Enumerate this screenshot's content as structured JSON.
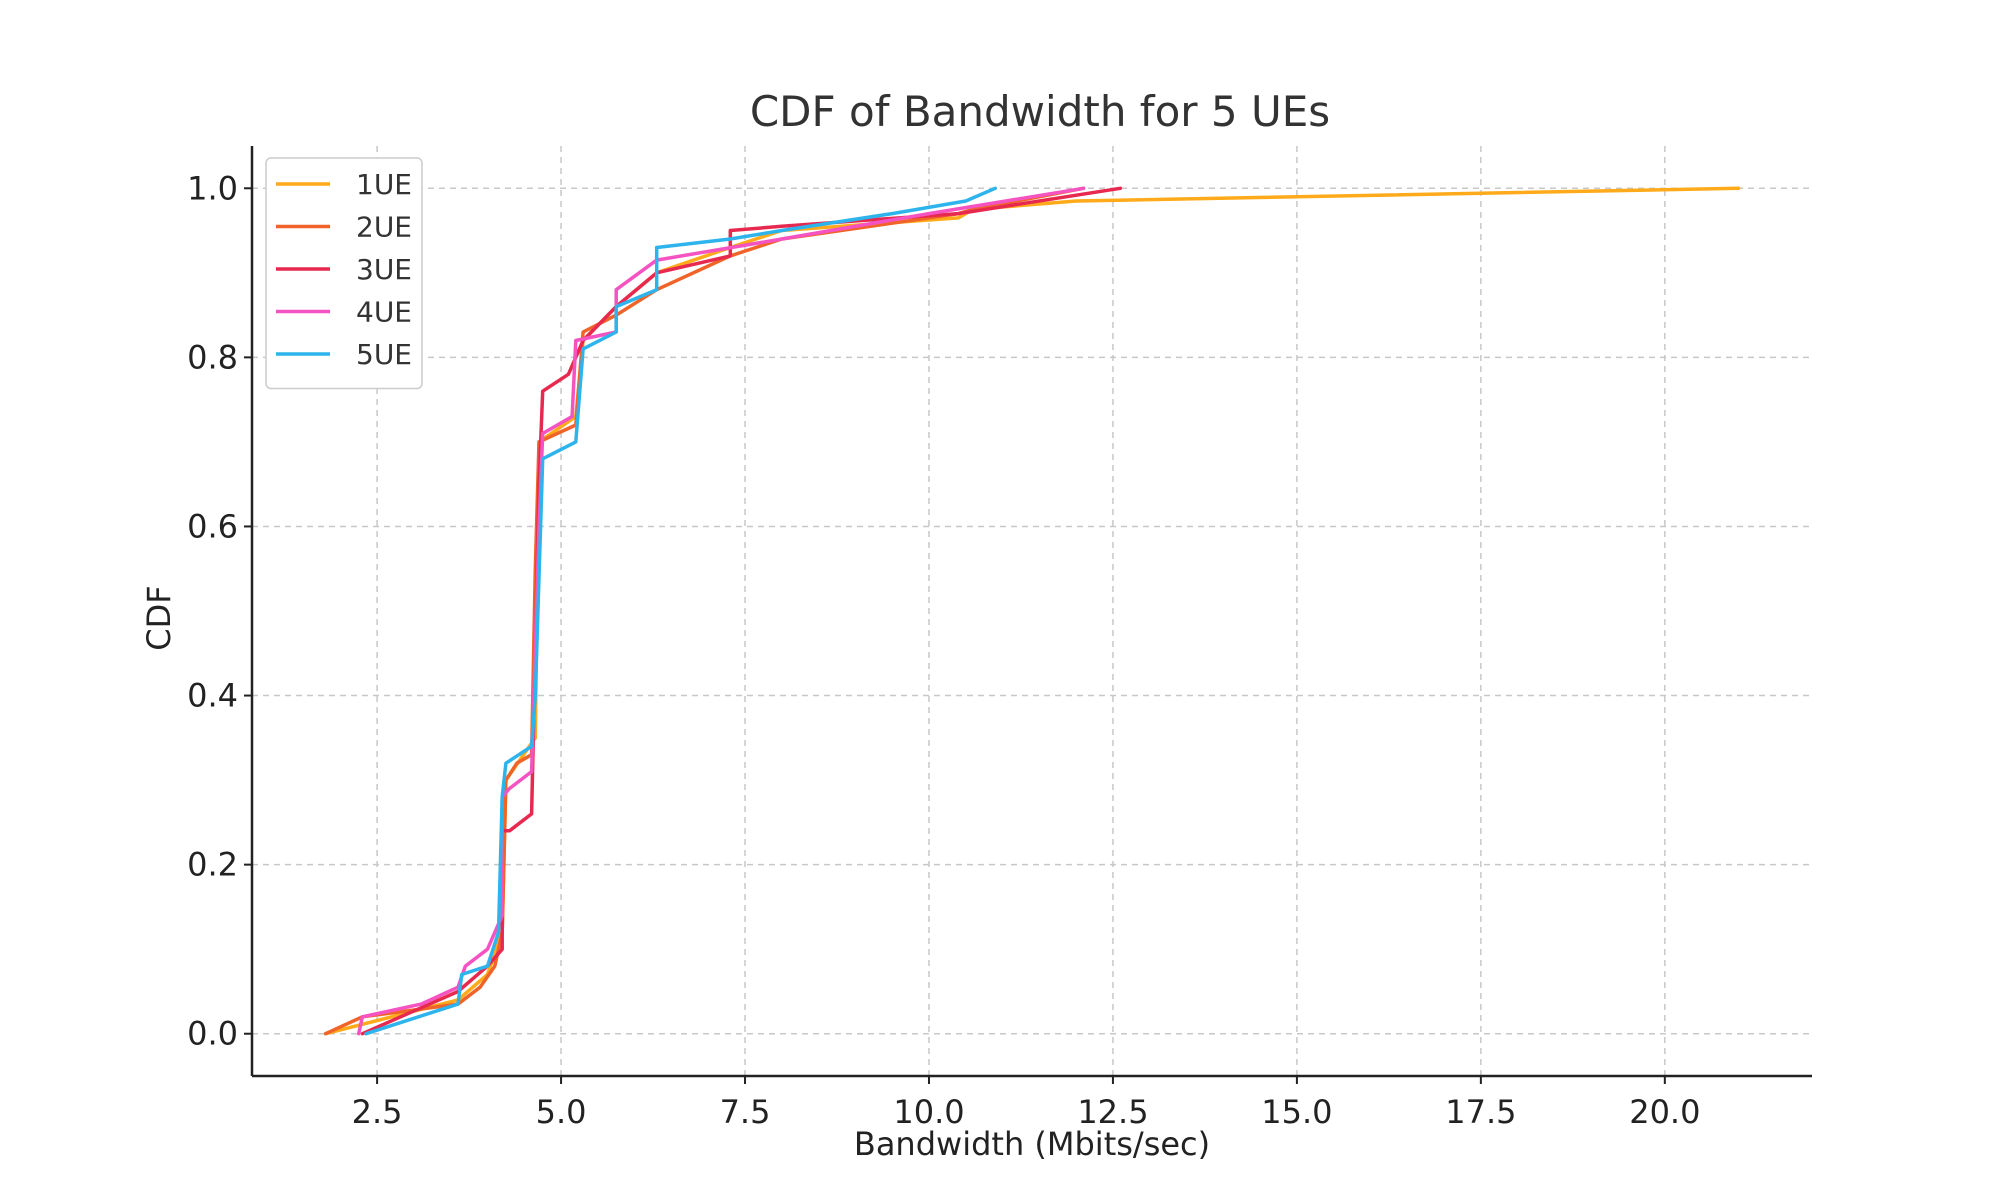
{
  "chart_data": {
    "type": "line",
    "title": "CDF of Bandwidth for 5 UEs",
    "xlabel": "Bandwidth (Mbits/sec)",
    "ylabel": "CDF",
    "xlim": [
      0.8,
      22.0
    ],
    "ylim": [
      -0.05,
      1.05
    ],
    "xticks": [
      2.5,
      5.0,
      7.5,
      10.0,
      12.5,
      15.0,
      17.5,
      20.0
    ],
    "xtick_labels": [
      "2.5",
      "5.0",
      "7.5",
      "10.0",
      "12.5",
      "15.0",
      "17.5",
      "20.0"
    ],
    "yticks": [
      0.0,
      0.2,
      0.4,
      0.6,
      0.8,
      1.0
    ],
    "ytick_labels": [
      "0.0",
      "0.2",
      "0.4",
      "0.6",
      "0.8",
      "1.0"
    ],
    "grid": true,
    "legend_position": "top-left",
    "series": [
      {
        "name": "1UE",
        "color": "#FFAA1A",
        "x": [
          1.8,
          3.6,
          4.0,
          4.2,
          4.25,
          4.65,
          4.7,
          5.2,
          5.3,
          5.75,
          6.3,
          7.3,
          8.0,
          10.4,
          10.6,
          12.0,
          21.0
        ],
        "y": [
          0.0,
          0.04,
          0.07,
          0.12,
          0.3,
          0.35,
          0.7,
          0.73,
          0.82,
          0.86,
          0.9,
          0.93,
          0.95,
          0.965,
          0.975,
          0.985,
          1.0
        ]
      },
      {
        "name": "2UE",
        "color": "#F0642A",
        "x": [
          1.8,
          2.3,
          3.6,
          3.9,
          4.1,
          4.2,
          4.25,
          4.4,
          4.6,
          4.65,
          4.7,
          5.2,
          5.3,
          5.75,
          6.3,
          7.3,
          8.0,
          10.4,
          10.6,
          12.1
        ],
        "y": [
          0.0,
          0.02,
          0.035,
          0.055,
          0.08,
          0.12,
          0.3,
          0.32,
          0.33,
          0.55,
          0.7,
          0.72,
          0.83,
          0.85,
          0.88,
          0.92,
          0.94,
          0.97,
          0.975,
          1.0
        ]
      },
      {
        "name": "3UE",
        "color": "#E8294F",
        "x": [
          2.3,
          3.6,
          4.0,
          4.2,
          4.2,
          4.3,
          4.6,
          4.7,
          4.75,
          5.1,
          5.3,
          5.75,
          6.3,
          7.3,
          7.3,
          8.0,
          10.4,
          12.6
        ],
        "y": [
          0.0,
          0.05,
          0.08,
          0.1,
          0.24,
          0.24,
          0.26,
          0.65,
          0.76,
          0.78,
          0.82,
          0.86,
          0.9,
          0.92,
          0.95,
          0.955,
          0.97,
          1.0
        ]
      },
      {
        "name": "4UE",
        "color": "#F553C2",
        "x": [
          2.25,
          2.3,
          3.1,
          3.6,
          3.7,
          4.0,
          4.2,
          4.2,
          4.3,
          4.6,
          4.7,
          4.75,
          5.15,
          5.2,
          5.75,
          5.75,
          6.3,
          8.0,
          10.0,
          12.1
        ],
        "y": [
          0.0,
          0.02,
          0.035,
          0.055,
          0.08,
          0.1,
          0.14,
          0.28,
          0.29,
          0.31,
          0.6,
          0.71,
          0.73,
          0.82,
          0.83,
          0.88,
          0.915,
          0.94,
          0.97,
          1.0
        ]
      },
      {
        "name": "5UE",
        "color": "#2EB4EC",
        "x": [
          2.35,
          3.6,
          3.65,
          4.0,
          4.15,
          4.2,
          4.25,
          4.6,
          4.65,
          4.75,
          5.2,
          5.3,
          5.75,
          5.75,
          6.3,
          6.3,
          7.3,
          8.0,
          9.5,
          10.5,
          10.9
        ],
        "y": [
          0.0,
          0.035,
          0.07,
          0.08,
          0.12,
          0.28,
          0.32,
          0.34,
          0.4,
          0.68,
          0.7,
          0.81,
          0.83,
          0.86,
          0.88,
          0.93,
          0.94,
          0.95,
          0.97,
          0.985,
          1.0
        ]
      }
    ]
  }
}
